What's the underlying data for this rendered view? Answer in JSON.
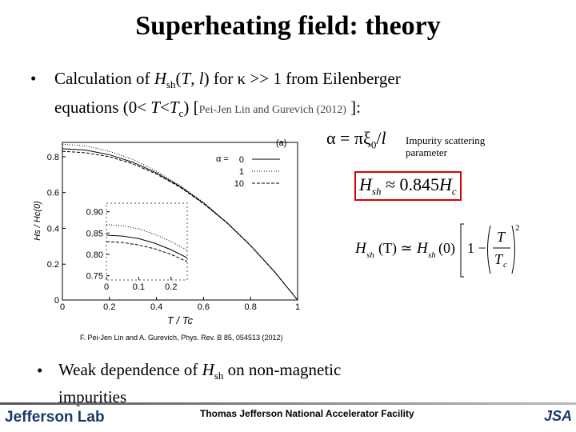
{
  "header": {
    "title": "Superheating field: theory"
  },
  "bullets": [
    {
      "line1": [
        "Calculation of ",
        "H",
        "sh",
        "(",
        "T",
        ", ",
        "l",
        ") for κ >> 1 from Eilenberger"
      ],
      "line2": [
        "equations (0< ",
        "T",
        "<",
        "T",
        "c",
        ") [",
        "Pei-Jen Lin and Gurevich (2012)",
        " ]:"
      ]
    },
    {
      "line1": [
        "Weak dependence of ",
        "H",
        "sh",
        " on non-magnetic"
      ],
      "line2": [
        "impurities"
      ]
    }
  ],
  "alpha": [
    "α = πξ",
    "0",
    "/",
    "l"
  ],
  "alpha_note": "Impurity scattering parameter",
  "boxed_formula": [
    "H",
    "sh",
    " ≈ 0.845",
    "H",
    "c"
  ],
  "formula": [
    "H",
    "sh",
    "(T) ≃ ",
    "H",
    "sh",
    "(0)",
    "1 −",
    "T",
    "T",
    "c",
    "2"
  ],
  "citation": "F. Pei-Jen Lin and A. Gurevich, Phys. Rev. B 85, 054513 (2012)",
  "footer": {
    "logo": "Jefferson Lab",
    "facility": "Thomas Jefferson National Accelerator Facility",
    "partner": "JSA"
  },
  "chart_data": {
    "type": "line",
    "panel_label": "(a)",
    "x_label": "T / Tc",
    "y_label": "Hs / Hc(0)",
    "x": [
      0,
      0.1,
      0.2,
      0.3,
      0.4,
      0.5,
      0.6,
      0.7,
      0.8,
      0.9,
      1
    ],
    "xlim": [
      0,
      1
    ],
    "ylim": [
      0,
      0.88
    ],
    "xticks": [
      0,
      0.2,
      0.4,
      0.6,
      0.8,
      1
    ],
    "yticks": [
      0,
      0.2,
      0.4,
      0.6,
      0.8
    ],
    "legend_title": "α =",
    "series": [
      {
        "name": "0",
        "color": "#000000",
        "dash": "none",
        "values": [
          0.845,
          0.837,
          0.811,
          0.769,
          0.71,
          0.634,
          0.541,
          0.431,
          0.304,
          0.161,
          0
        ]
      },
      {
        "name": "1",
        "color": "#000000",
        "dash": "1 2",
        "values": [
          0.87,
          0.86,
          0.83,
          0.785,
          0.72,
          0.64,
          0.545,
          0.433,
          0.305,
          0.161,
          0
        ]
      },
      {
        "name": "10",
        "color": "#000000",
        "dash": "4 2",
        "values": [
          0.83,
          0.822,
          0.8,
          0.76,
          0.703,
          0.63,
          0.538,
          0.43,
          0.303,
          0.16,
          0
        ]
      }
    ],
    "inset": {
      "x": [
        0,
        0.05,
        0.1,
        0.15,
        0.2,
        0.25
      ],
      "xlim": [
        0,
        0.25
      ],
      "ylim": [
        0.74,
        0.92
      ],
      "xticks": [
        0,
        0.1,
        0.2
      ],
      "yticks": [
        {
          "value": 0.75,
          "label": "0.75"
        },
        {
          "value": 0.8,
          "label": "0.80"
        },
        {
          "value": 0.85,
          "label": "0.85"
        },
        {
          "value": 0.9,
          "label": "0.90"
        }
      ],
      "series": [
        {
          "values": [
            0.845,
            0.843,
            0.837,
            0.826,
            0.811,
            0.792
          ]
        },
        {
          "values": [
            0.87,
            0.867,
            0.86,
            0.847,
            0.83,
            0.81
          ]
        },
        {
          "values": [
            0.83,
            0.828,
            0.822,
            0.813,
            0.8,
            0.783
          ]
        }
      ]
    }
  }
}
